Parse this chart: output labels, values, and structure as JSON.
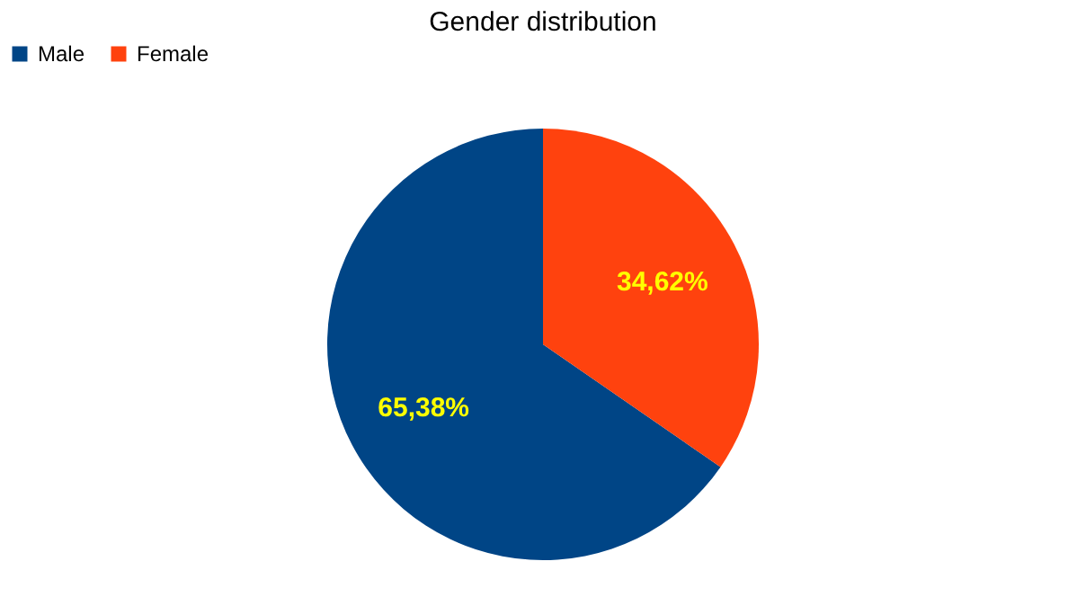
{
  "chart_data": {
    "type": "pie",
    "title": "Gender distribution",
    "categories": [
      "Male",
      "Female"
    ],
    "values": [
      65.38,
      34.62
    ],
    "colors": [
      "#004586",
      "#ff420e"
    ],
    "value_labels": [
      "65,38%",
      "34,62%"
    ],
    "legend": "top"
  }
}
